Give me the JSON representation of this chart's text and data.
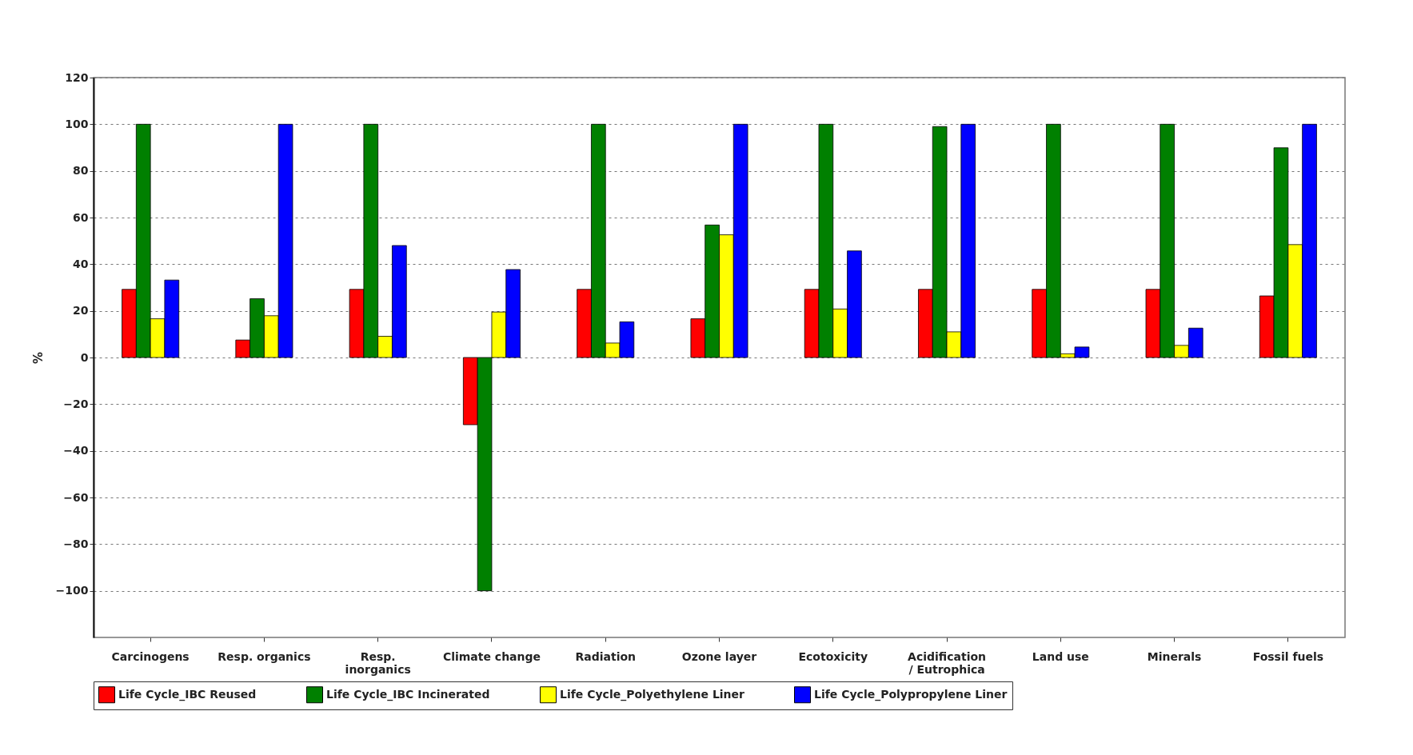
{
  "chart_data": {
    "type": "bar",
    "ylabel": "%",
    "categories": [
      "Carcinogens",
      "Resp. organics",
      "Resp. inorganics",
      "Climate change",
      "Radiation",
      "Ozone layer",
      "Ecotoxicity",
      "Acidification / Eutrophica",
      "Land use",
      "Minerals",
      "Fossil fuels"
    ],
    "series": [
      {
        "name": "Life Cycle_IBC Reused",
        "color": "#ff0000",
        "values": [
          29.2,
          7.5,
          29.2,
          -28.8,
          29.2,
          16.6,
          29.2,
          29.2,
          29.2,
          29.2,
          26.4
        ]
      },
      {
        "name": "Life Cycle_IBC Incinerated",
        "color": "#008000",
        "values": [
          100,
          25.2,
          100,
          -100,
          100,
          56.8,
          100,
          99,
          100,
          100,
          89.9
        ]
      },
      {
        "name": "Life Cycle_Polyethylene Liner",
        "color": "#ffff00",
        "values": [
          16.6,
          17.9,
          9.1,
          19.5,
          6.2,
          52.6,
          20.8,
          11,
          1.6,
          5.2,
          48.4
        ]
      },
      {
        "name": "Life Cycle_Polypropylene Liner",
        "color": "#0000ff",
        "values": [
          33.2,
          100,
          48,
          37.7,
          15.3,
          100,
          45.7,
          100,
          4.5,
          12.6,
          100
        ]
      }
    ],
    "ylim": [
      -120,
      120
    ],
    "yticks": [
      -100,
      -80,
      -60,
      -40,
      -20,
      0,
      20,
      40,
      60,
      80,
      100,
      120
    ],
    "grid": "y",
    "legend": "bottom"
  }
}
